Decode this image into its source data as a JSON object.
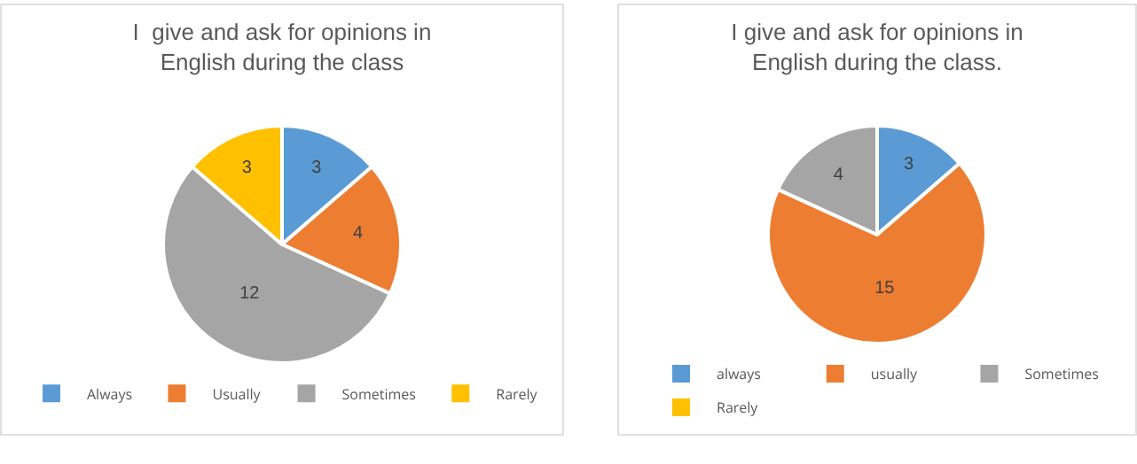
{
  "chart_data": [
    {
      "type": "pie",
      "title": "I  give and ask for opinions in English during the class",
      "categories": [
        "Always",
        "Usually",
        "Sometimes",
        "Rarely"
      ],
      "values": [
        3,
        4,
        12,
        3
      ],
      "colors": [
        "#5b9bd5",
        "#ed7d31",
        "#a5a5a5",
        "#ffc000"
      ],
      "data_labels": true,
      "legend": "bottom"
    },
    {
      "type": "pie",
      "title": "I give and ask for opinions in English during the class.",
      "categories": [
        "always",
        "usually",
        "Sometimes",
        "Rarely"
      ],
      "values": [
        3,
        15,
        4,
        0
      ],
      "value_labels": [
        "3",
        "15",
        "4",
        null
      ],
      "colors": [
        "#5b9bd5",
        "#ed7d31",
        "#a5a5a5",
        "#ffc000"
      ],
      "legend": "bottom"
    }
  ]
}
